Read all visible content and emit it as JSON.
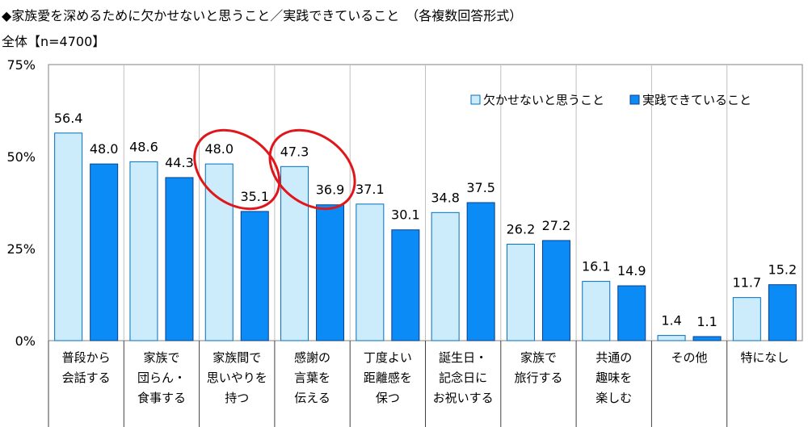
{
  "header": {
    "title": "◆家族愛を深めるために欠かせないと思うこと／実践できていること　（各複数回答形式）",
    "subtitle": "全体【n=4700】"
  },
  "colors": {
    "series1": "#CCEBFB",
    "series1_border": "#0070C0",
    "series2": "#0B8BF5",
    "series2_border": "#0A3F8C",
    "highlight": "#E0161B",
    "grid": "#BFBFBF"
  },
  "chart_data": {
    "type": "bar",
    "ylim": [
      0,
      75
    ],
    "yticks": [
      0,
      25,
      50,
      75
    ],
    "ytick_labels": [
      "0%",
      "25%",
      "50%",
      "75%"
    ],
    "legend_position": "top-right",
    "categories": [
      [
        "普段から",
        "会話する"
      ],
      [
        "家族で",
        "団らん・",
        "食事する"
      ],
      [
        "家族間で",
        "思いやりを",
        "持つ"
      ],
      [
        "感謝の",
        "言葉を",
        "伝える"
      ],
      [
        "丁度よい",
        "距離感を",
        "保つ"
      ],
      [
        "誕生日・",
        "記念日に",
        "お祝いする"
      ],
      [
        "家族で",
        "旅行する"
      ],
      [
        "共通の",
        "趣味を",
        "楽しむ"
      ],
      [
        "その他"
      ],
      [
        "特になし"
      ]
    ],
    "series": [
      {
        "name": "欠かせないと思うこと",
        "values": [
          56.4,
          48.6,
          48.0,
          47.3,
          37.1,
          34.8,
          26.2,
          16.1,
          1.4,
          11.7
        ]
      },
      {
        "name": "実践できていること",
        "values": [
          48.0,
          44.3,
          35.1,
          36.9,
          30.1,
          37.5,
          27.2,
          14.9,
          1.1,
          15.2
        ]
      }
    ],
    "highlighted_categories": [
      2,
      3
    ]
  }
}
